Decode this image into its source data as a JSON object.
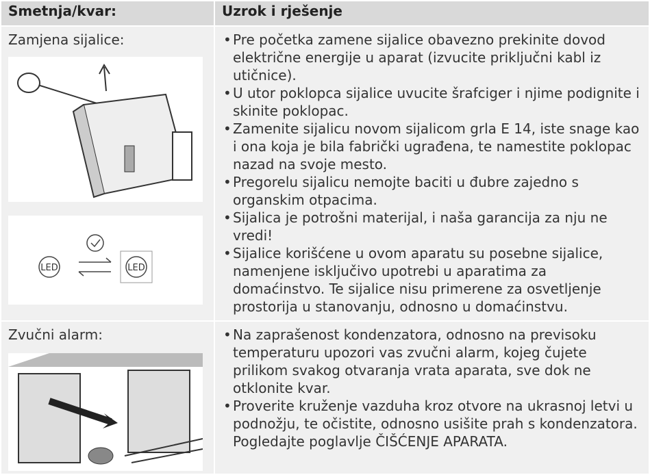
{
  "table": {
    "header": [
      "Smetnja/kvar:",
      "Uzrok i rješenje"
    ],
    "rows": [
      {
        "label": "Zamjena sijalice:",
        "icon_label": "LED",
        "bullets": [
          "Pre početka zamene sijalice obavezno prekinite dovod električne energije u aparat (izvucite priključni kabl iz utičnice).",
          "U utor poklopca sijalice uvucite šrafciger i njime podignite i skinite poklopac.",
          "Zamenite sijalicu novom sijalicom grla E 14, iste snage kao i ona koja je bila fabrički ugrađena, te namestite poklopac nazad na svoje mesto.",
          "Pregorelu sijalicu nemojte baciti u đubre zajedno s organskim otpacima.",
          "Sijalica je potrošni materijal, i naša garancija za nju ne vredi!",
          "Sijalice korišćene u ovom aparatu su posebne sijalice, namenjene isključivo upotrebi u aparatima za domaćinstvo. Te sijalice nisu primerene za osvetljenje prostorija u stanovanju, odnosno u domaćinstvu."
        ]
      },
      {
        "label": "Zvučni alarm:",
        "bullets": [
          "Na zaprašenost kondenzatora, odnosno na previsoku temperaturu upozori vas zvučni alarm, kojeg čujete prilikom svakog otvaranja vrata aparata, sve dok ne otklonite kvar.",
          "Proverite kruženje vazduha kroz otvore na ukrasnoj letvi u podnožju, te očistite, odnosno usišite prah s kondenzatora. Pogledajte poglavlje ČIŠĆENJE APARATA."
        ]
      }
    ]
  }
}
